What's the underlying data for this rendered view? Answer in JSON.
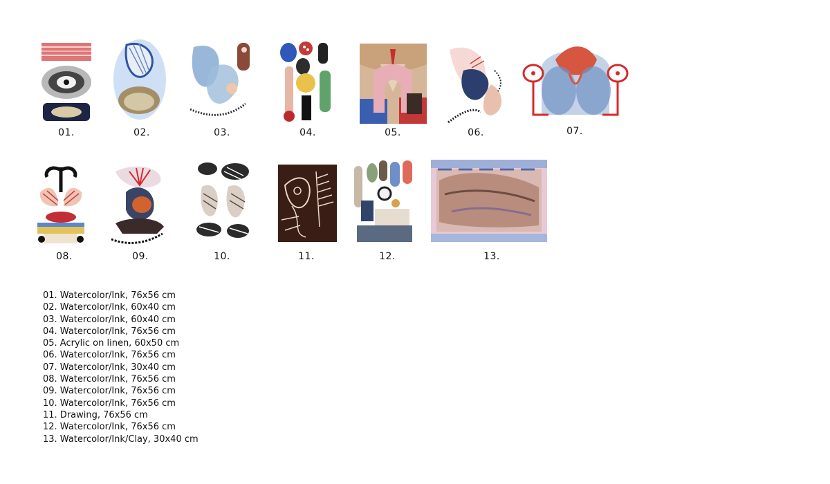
{
  "artworks": [
    {
      "label": "01.",
      "caption": "01. Watercolor/Ink, 76x56 cm"
    },
    {
      "label": "02.",
      "caption": "02. Watercolor/Ink, 60x40 cm"
    },
    {
      "label": "03.",
      "caption": "03. Watercolor/Ink, 60x40 cm"
    },
    {
      "label": "04.",
      "caption": "04. Watercolor/Ink, 76x56 cm"
    },
    {
      "label": "05.",
      "caption": "05. Acrylic on linen, 60x50 cm"
    },
    {
      "label": "06.",
      "caption": "06. Watercolor/Ink, 76x56 cm"
    },
    {
      "label": "07.",
      "caption": "07. Watercolor/Ink, 30x40 cm"
    },
    {
      "label": "08.",
      "caption": "08. Watercolor/Ink, 76x56 cm"
    },
    {
      "label": "09.",
      "caption": "09. Watercolor/Ink, 76x56 cm"
    },
    {
      "label": "10.",
      "caption": "10. Watercolor/Ink, 76x56 cm"
    },
    {
      "label": "11.",
      "caption": "11. Drawing, 76x56 cm"
    },
    {
      "label": "12.",
      "caption": "12. Watercolor/Ink, 76x56 cm"
    },
    {
      "label": "13.",
      "caption": "13. Watercolor/Ink/Clay, 30x40 cm"
    }
  ]
}
